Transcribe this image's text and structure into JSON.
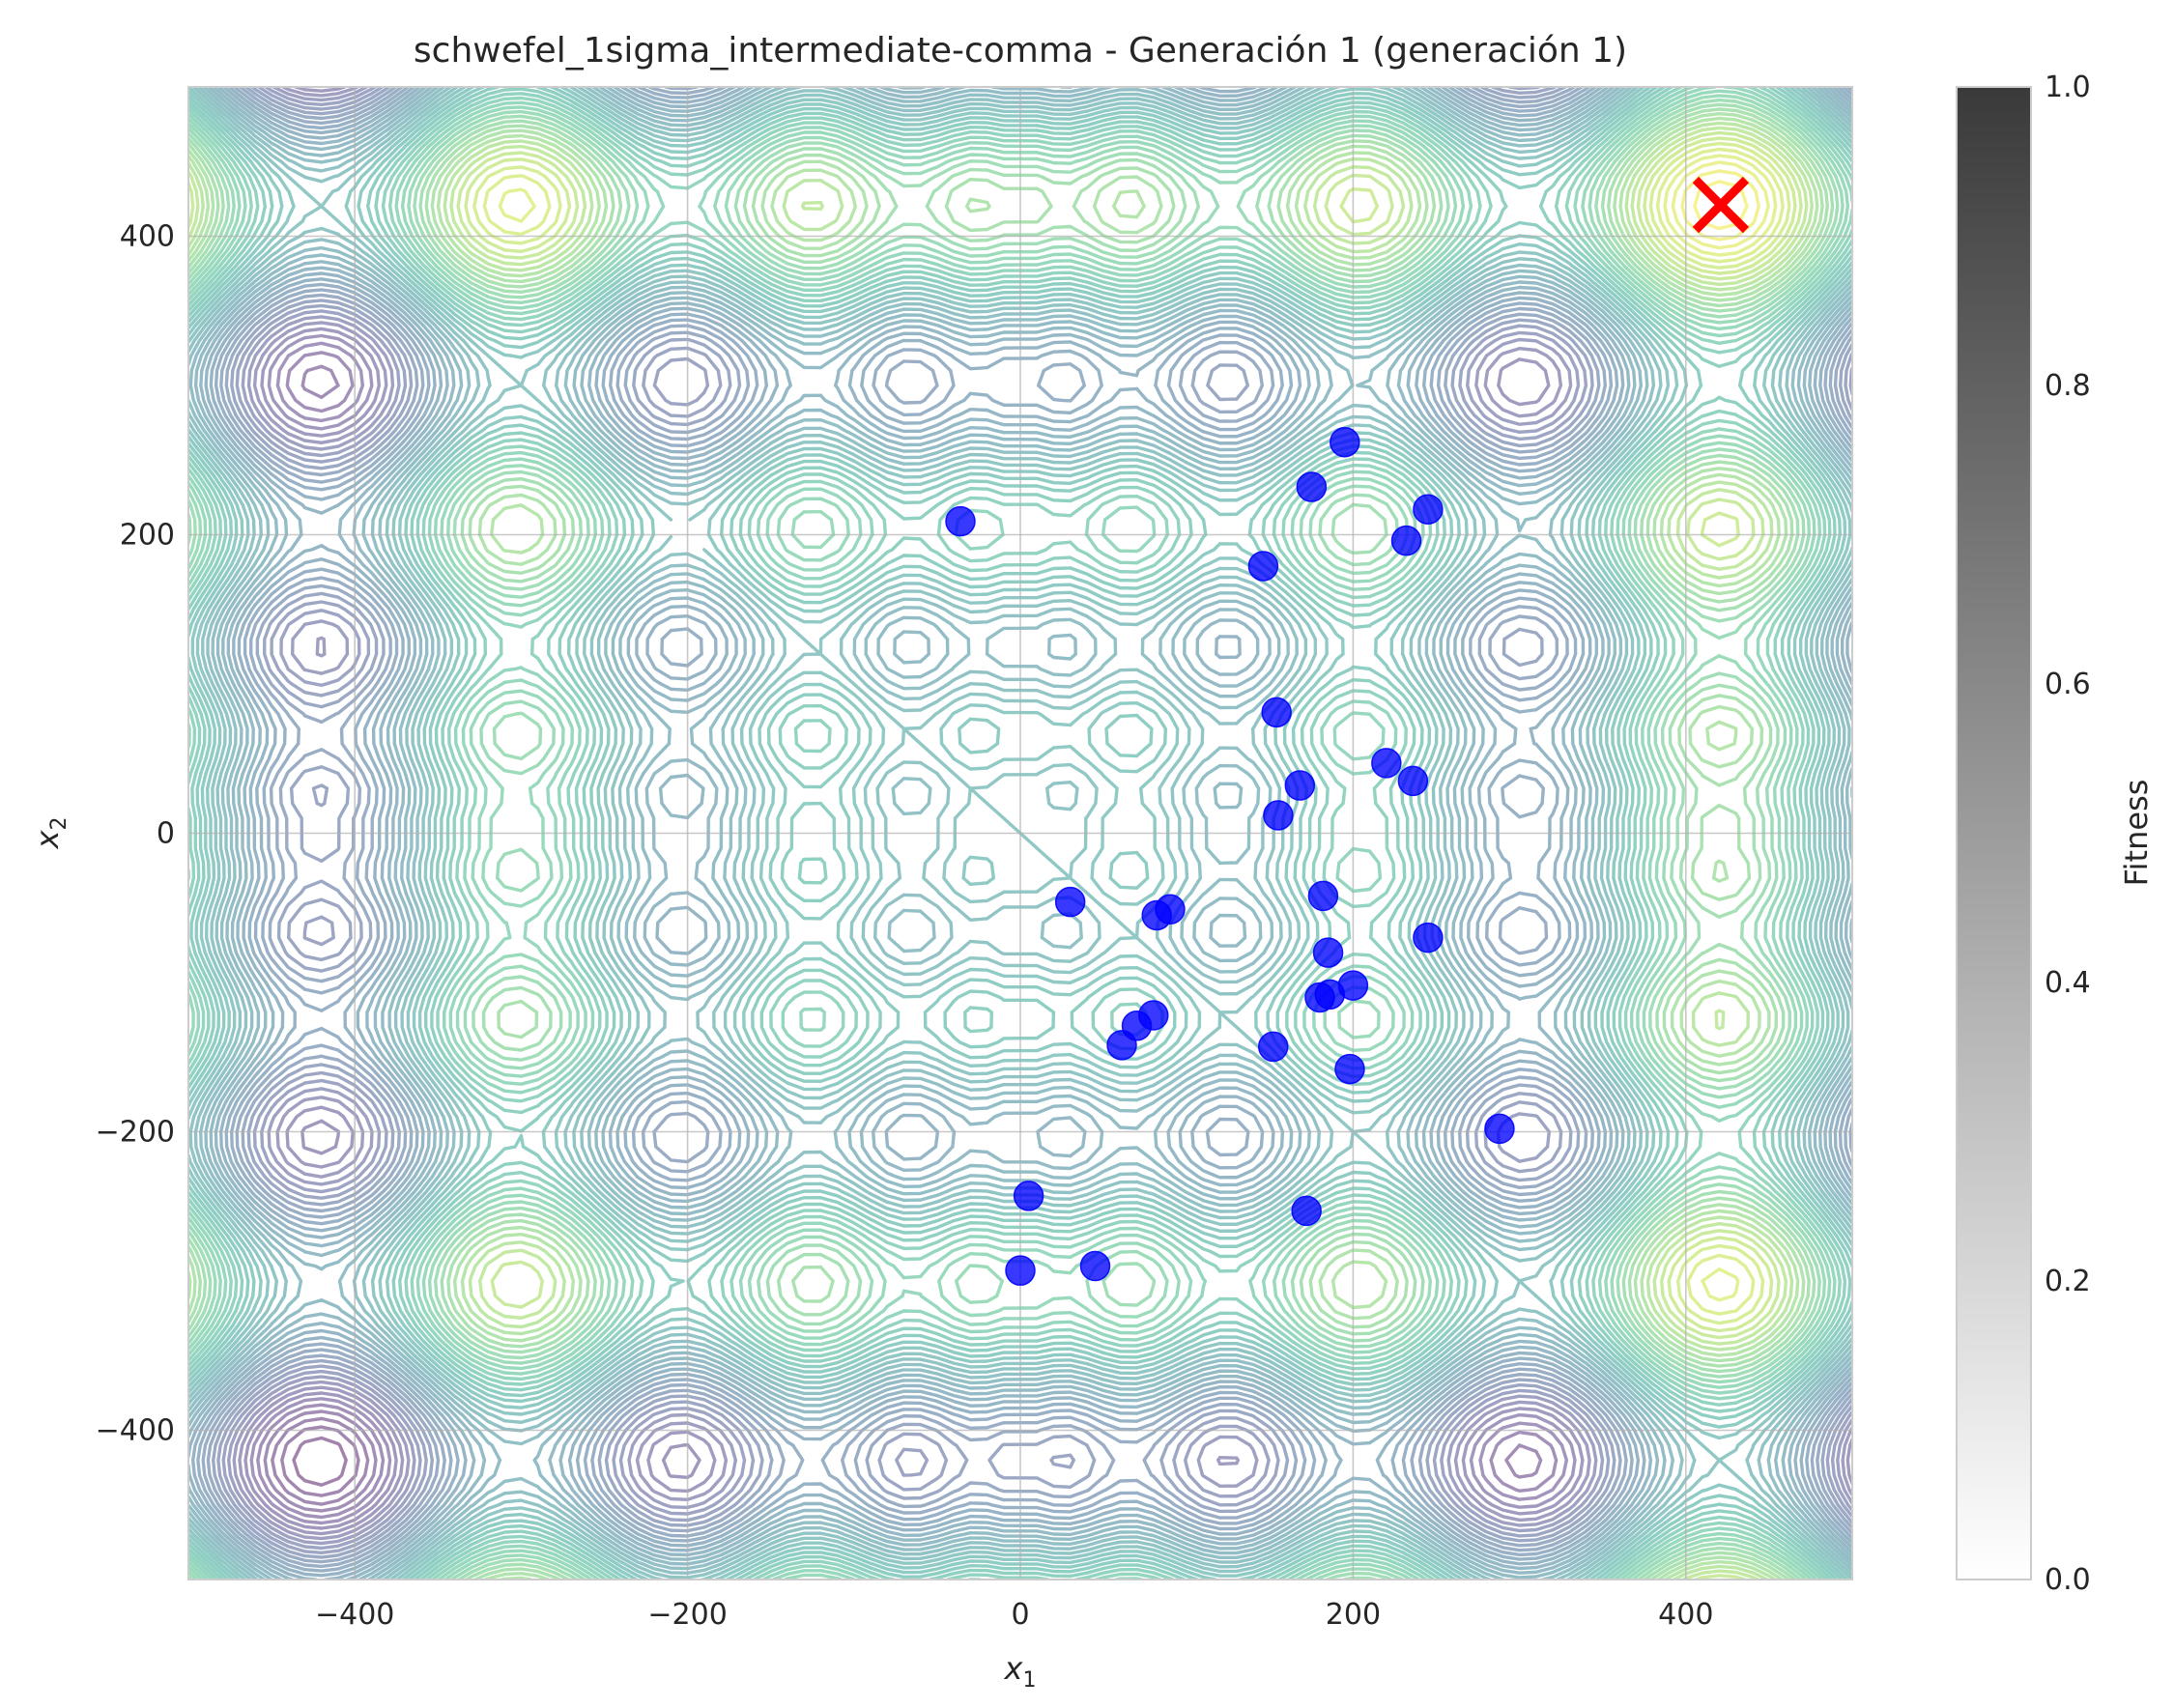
{
  "chart_data": {
    "type": "scatter",
    "title": "schwefel_1sigma_intermediate-comma - Generación 1 (generación 1)",
    "xlabel_base": "x",
    "xlabel_sub": "1",
    "ylabel_base": "x",
    "ylabel_sub": "2",
    "xlim": [
      -500,
      500
    ],
    "ylim": [
      -500,
      500
    ],
    "xticks": [
      -400,
      -200,
      0,
      200,
      400
    ],
    "yticks": [
      -400,
      -200,
      0,
      200,
      400
    ],
    "xtick_labels": [
      "−400",
      "−200",
      "0",
      "200",
      "400"
    ],
    "ytick_labels": [
      "−400",
      "−200",
      "0",
      "200",
      "400"
    ],
    "grid": true,
    "background": "contour plot of the Schwefel function (viridis, semi-transparent)",
    "population": {
      "color": "#0000ff",
      "points": [
        [
          -36,
          209
        ],
        [
          195,
          262
        ],
        [
          175,
          232
        ],
        [
          245,
          217
        ],
        [
          232,
          196
        ],
        [
          146,
          179
        ],
        [
          154,
          81
        ],
        [
          220,
          47
        ],
        [
          236,
          35
        ],
        [
          168,
          32
        ],
        [
          155,
          12
        ],
        [
          30,
          -46
        ],
        [
          82,
          -55
        ],
        [
          90,
          -51
        ],
        [
          182,
          -42
        ],
        [
          185,
          -80
        ],
        [
          245,
          -70
        ],
        [
          180,
          -110
        ],
        [
          186,
          -108
        ],
        [
          200,
          -102
        ],
        [
          80,
          -122
        ],
        [
          70,
          -129
        ],
        [
          61,
          -142
        ],
        [
          152,
          -143
        ],
        [
          198,
          -158
        ],
        [
          288,
          -198
        ],
        [
          5,
          -243
        ],
        [
          172,
          -253
        ],
        [
          0,
          -293
        ],
        [
          45,
          -290
        ]
      ]
    },
    "optimum": {
      "x": 420.97,
      "y": 420.97,
      "marker": "x",
      "color": "#ff0000"
    },
    "colorbar": {
      "label": "Fitness",
      "range": [
        0,
        1
      ],
      "ticks": [
        0.0,
        0.2,
        0.4,
        0.6,
        0.8,
        1.0
      ],
      "tick_labels": [
        "0.0",
        "0.2",
        "0.4",
        "0.6",
        "0.8",
        "1.0"
      ],
      "colors": [
        "#ffffff",
        "#3a3a3a"
      ]
    }
  }
}
